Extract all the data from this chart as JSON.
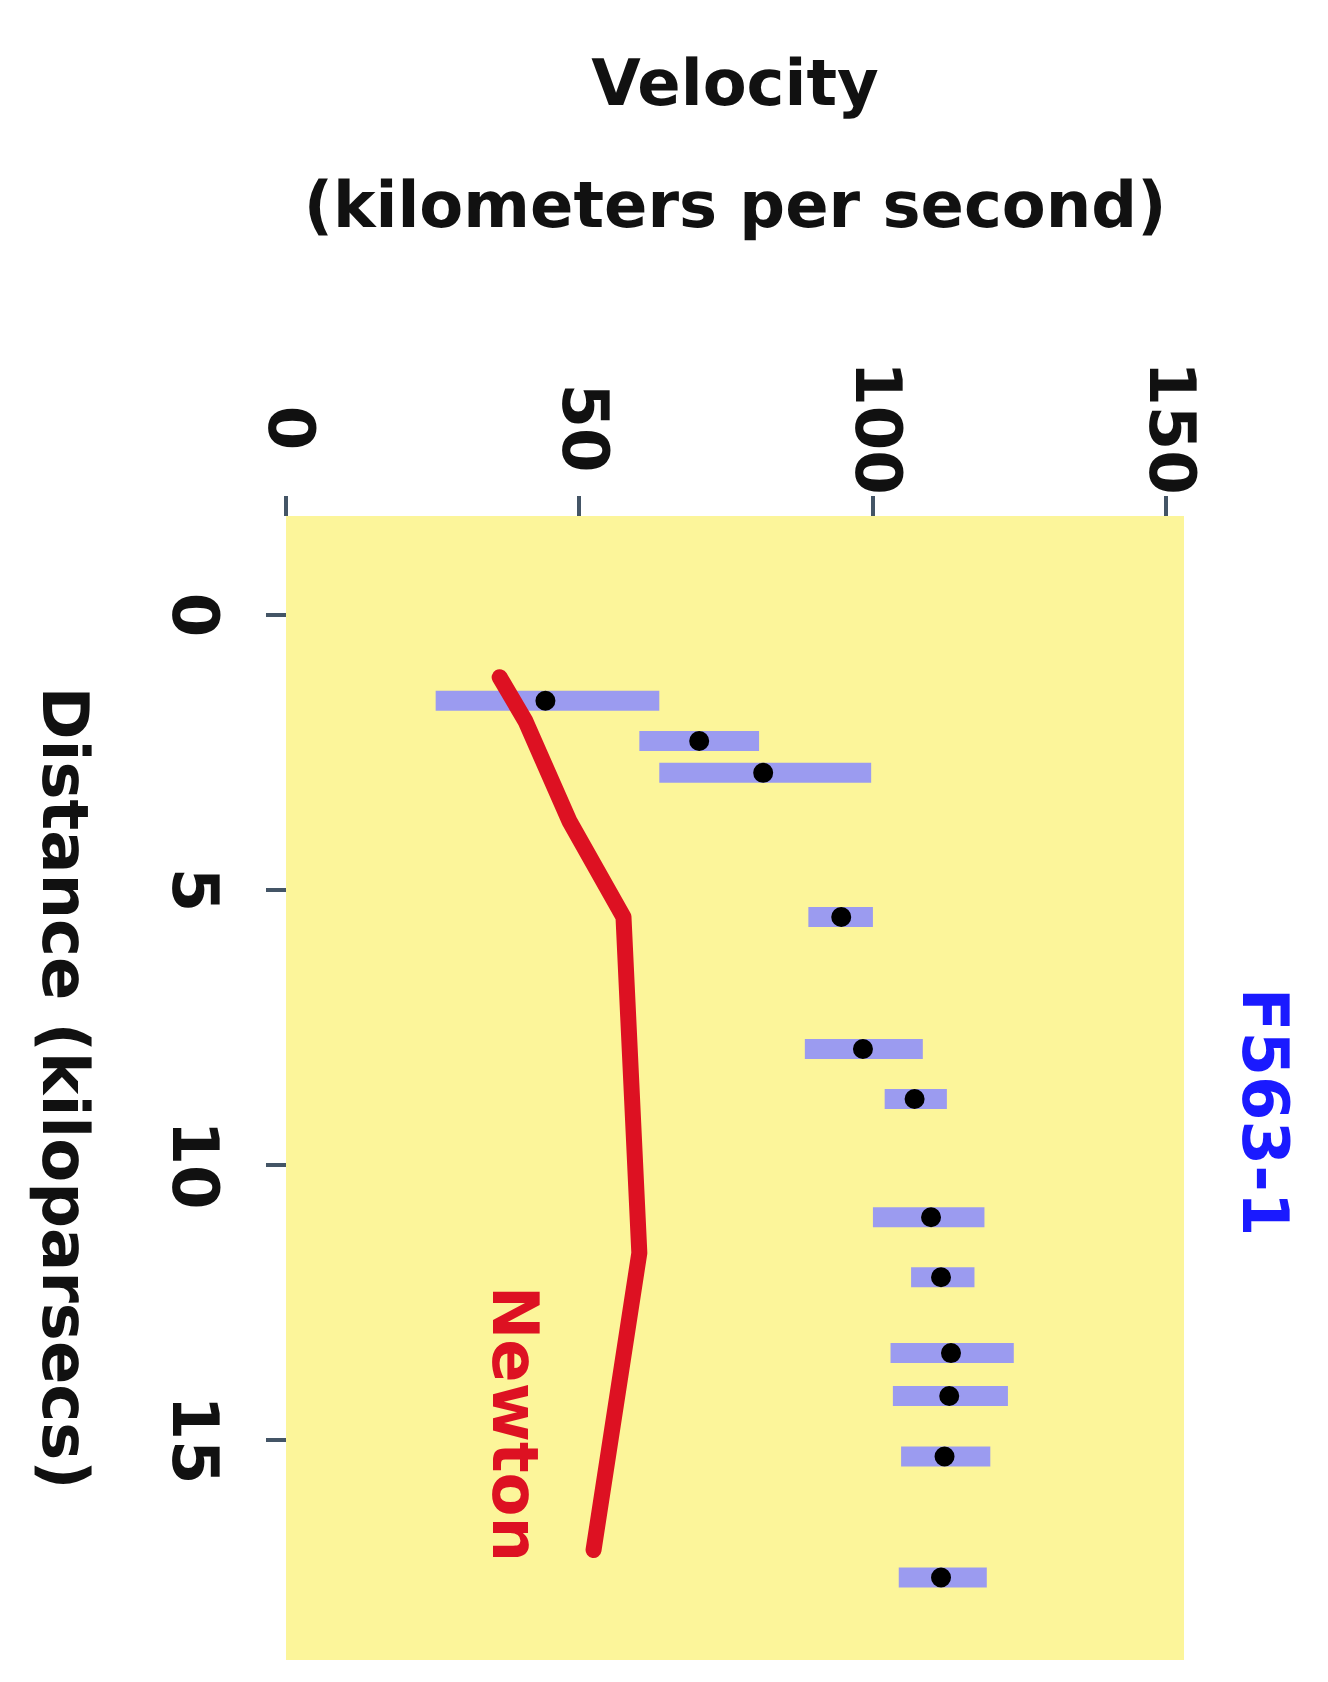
{
  "chart_data": {
    "type": "scatter",
    "title": "F563-1",
    "xlabel": "Velocity\n(kilometers per second)",
    "ylabel": "Distance (kiloparsecs)",
    "xlim": [
      0,
      153
    ],
    "xticks": [
      0,
      50,
      100,
      150
    ],
    "ylim": [
      19,
      -1.8
    ],
    "yticks": [
      0,
      5,
      10,
      15
    ],
    "grid": false,
    "legend": false,
    "series": [
      {
        "name": "Newton",
        "type": "line",
        "marker": "none",
        "color": "#dd1122",
        "x": [
          36.4,
          40.8,
          48.3,
          57.5,
          60.2,
          52.4
        ],
        "values": [
          1.13,
          1.93,
          3.75,
          5.49,
          11.6,
          17.0
        ]
      },
      {
        "marker": "circle",
        "color": "#000000",
        "x": [
          44.2,
          70.4,
          81.3,
          94.6,
          98.3,
          107.1,
          109.9,
          111.6,
          113.3,
          113,
          112.2,
          111.6
        ],
        "values": [
          1.56,
          2.29,
          2.87,
          5.49,
          7.89,
          8.8,
          10.95,
          12.04,
          13.42,
          14.2,
          15.3,
          17.5
        ],
        "xerrors": [
          [
            25.5,
            63.6
          ],
          [
            60.2,
            80.6
          ],
          [
            63.6,
            99.7
          ],
          [
            89,
            100
          ],
          [
            88.4,
            108.5
          ],
          [
            102,
            112.6
          ],
          [
            100,
            119
          ],
          [
            106.5,
            117.3
          ],
          [
            103,
            124
          ],
          [
            103.4,
            123
          ],
          [
            104.8,
            120
          ],
          [
            104.4,
            119.4
          ]
        ]
      }
    ]
  }
}
